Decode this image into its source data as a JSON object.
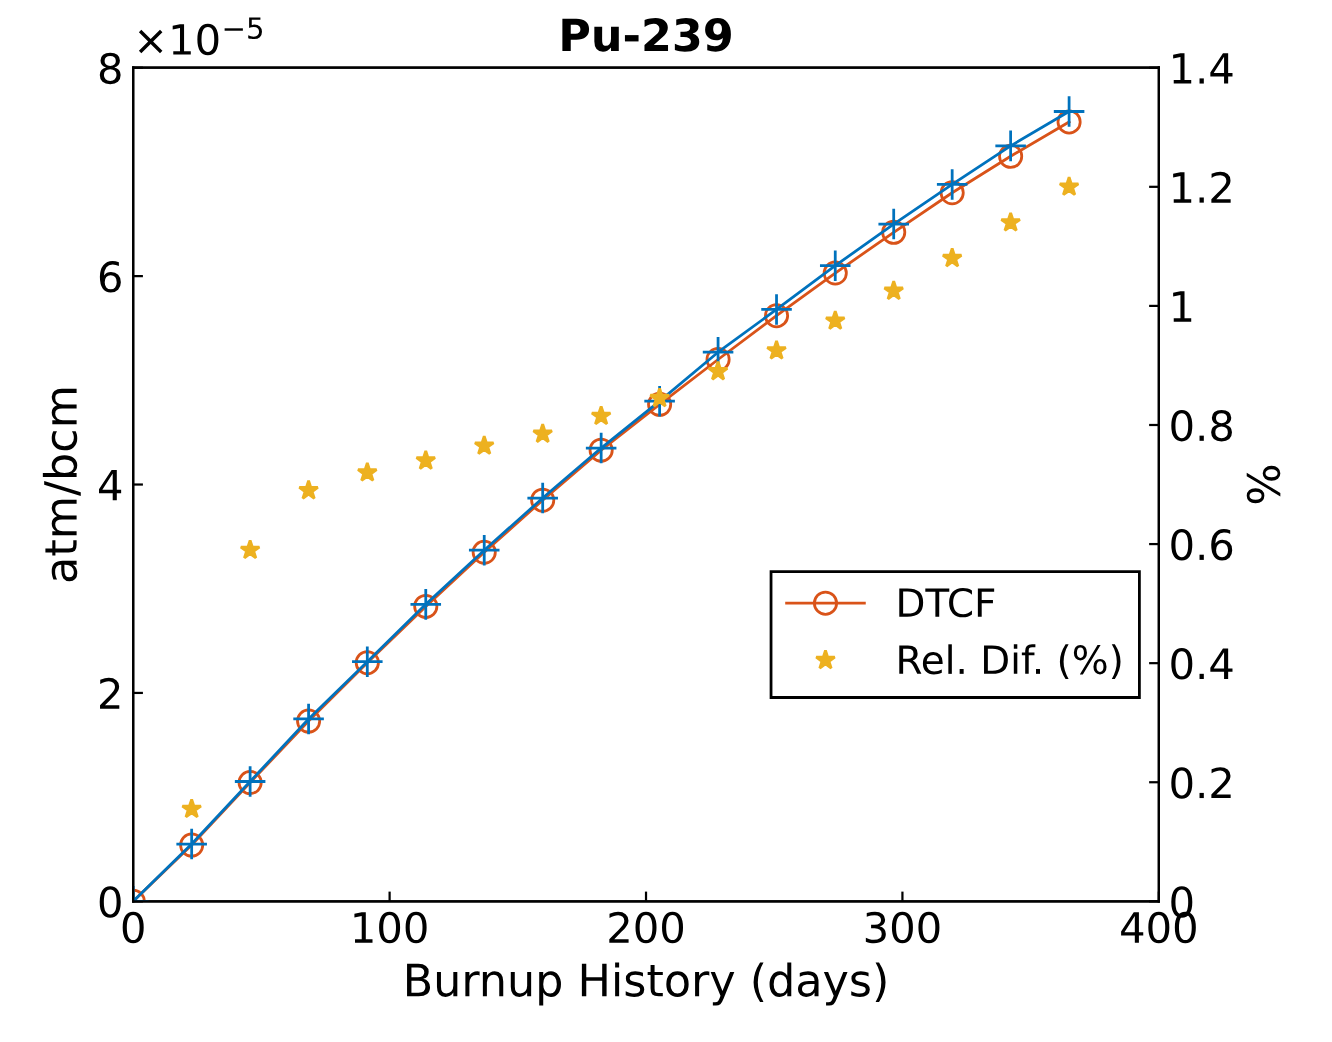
{
  "chart_data": {
    "type": "line",
    "title": "Pu-239",
    "xlabel": "Burnup History (days)",
    "ylabel": "atm/bcm",
    "y2label": "%",
    "annotations": [
      "×10$^{−5}$"
    ],
    "x": [
      0,
      22.8,
      45.6,
      68.4,
      91.3,
      114.1,
      136.9,
      159.7,
      182.5,
      205.3,
      228.1,
      250.9,
      273.8,
      296.6,
      319.4,
      342.2,
      365
    ],
    "series": [
      {
        "color": "#0072bd",
        "marker": "cross",
        "line_style": "solid",
        "values": [
          0,
          0.55,
          1.15,
          1.75,
          2.3,
          2.85,
          3.37,
          3.87,
          4.35,
          4.8,
          5.27,
          5.68,
          6.1,
          6.5,
          6.88,
          7.25,
          7.58
        ]
      },
      {
        "name": "DTCF",
        "color": "#d95319",
        "marker": "circle",
        "line_style": "solid",
        "values": [
          0,
          0.54,
          1.14,
          1.73,
          2.29,
          2.83,
          3.35,
          3.85,
          4.33,
          4.77,
          5.2,
          5.62,
          6.03,
          6.42,
          6.8,
          7.15,
          7.48
        ]
      },
      {
        "name": "Rel. Dif. (%)",
        "type": "scatter",
        "axis": "y2",
        "color": "#edb120",
        "marker": "star",
        "values": [
          null,
          0.155,
          0.59,
          0.69,
          0.72,
          0.74,
          0.765,
          0.785,
          0.815,
          0.845,
          0.89,
          0.925,
          0.975,
          1.025,
          1.08,
          1.14,
          1.2
        ]
      }
    ],
    "xlim": [
      0,
      400
    ],
    "xticks": [
      0,
      100,
      200,
      300,
      400
    ],
    "ylim": [
      0,
      8
    ],
    "yticks": [
      0,
      2,
      4,
      6,
      8
    ],
    "y2lim": [
      0,
      1.4
    ],
    "y2ticks": [
      0,
      0.2,
      0.4,
      0.6,
      0.8,
      1,
      1.2,
      1.4
    ],
    "legend": "right",
    "grid": false
  }
}
